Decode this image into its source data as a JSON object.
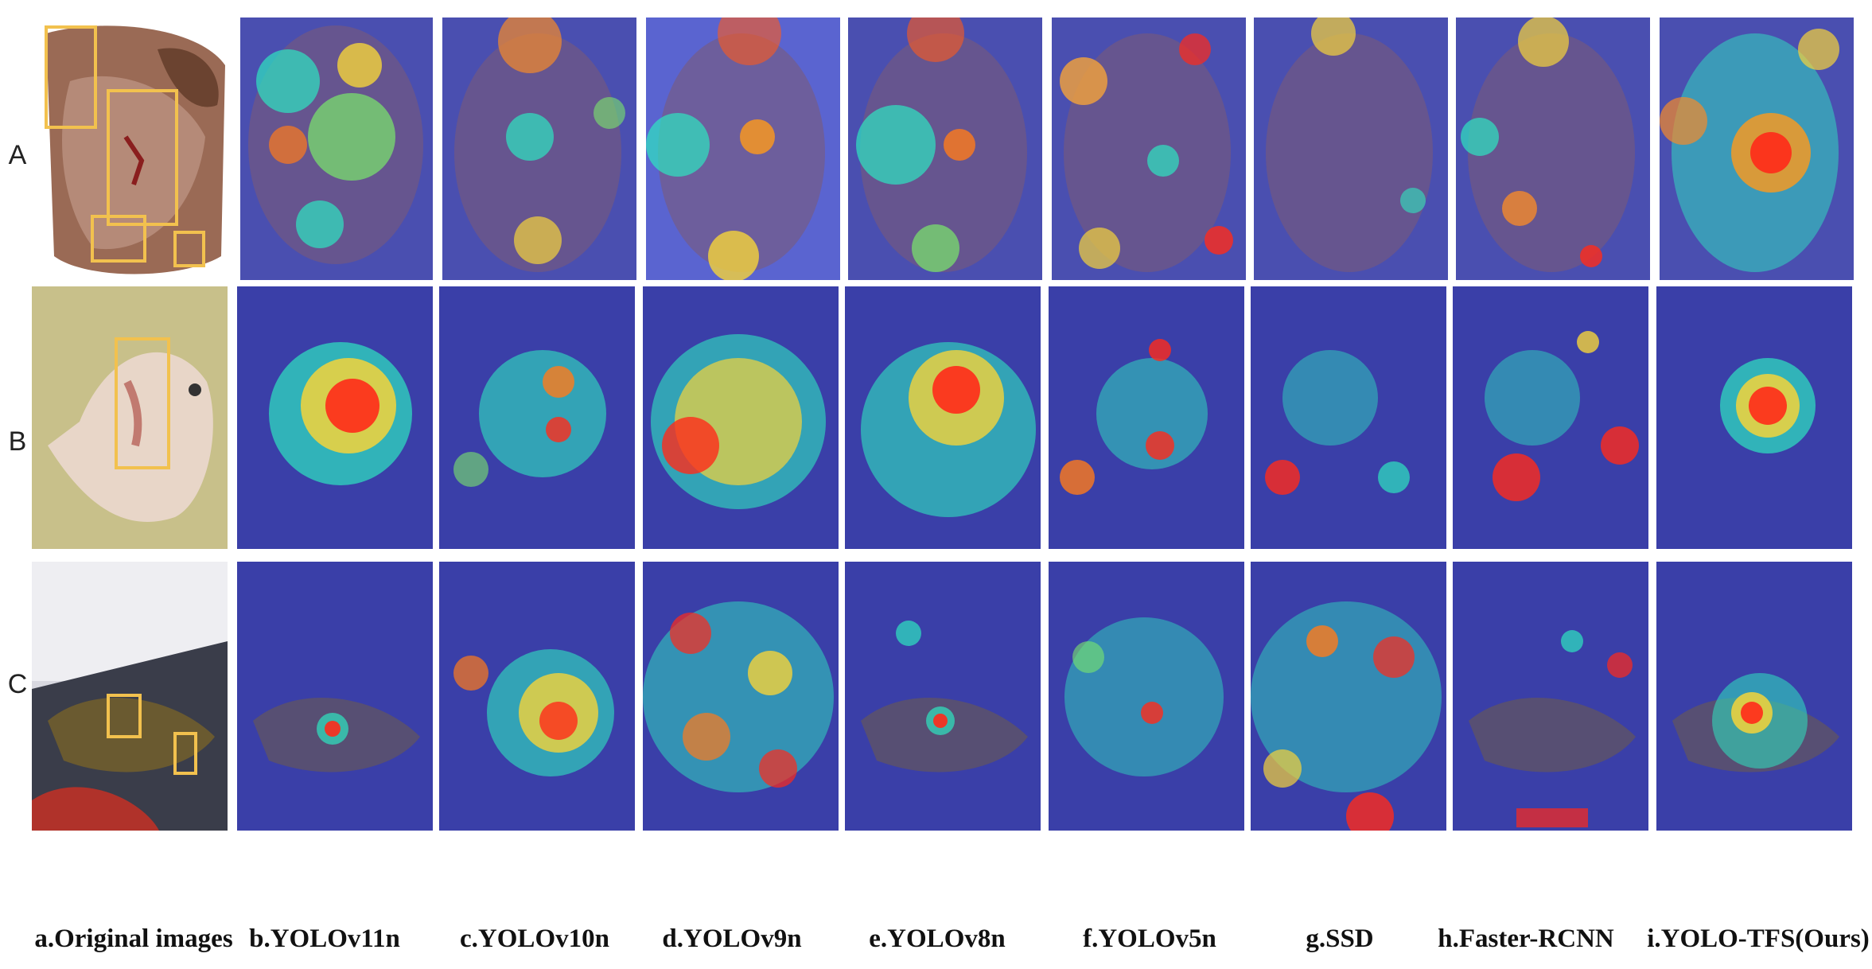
{
  "rows": [
    {
      "label": "A"
    },
    {
      "label": "B"
    },
    {
      "label": "C"
    }
  ],
  "columns": [
    {
      "caption": "a.Original images"
    },
    {
      "caption": "b.YOLOv11n"
    },
    {
      "caption": "c.YOLOv10n"
    },
    {
      "caption": "d.YOLOv9n"
    },
    {
      "caption": "e.YOLOv8n"
    },
    {
      "caption": "f.YOLOv5n"
    },
    {
      "caption": "g.SSD"
    },
    {
      "caption": "h.Faster-RCNN"
    },
    {
      "caption": "i.YOLO-TFS(Ours)"
    }
  ],
  "colors": {
    "box_outline": "#f2c14e",
    "heat_low": "#2b2f9e",
    "heat_mid": "#2ee6c0",
    "heat_high": "#ff2a1a",
    "fish_a": "#9a6a55",
    "fish_b_bg": "#c8c08a",
    "fish_c_bg": "#3a3d4a"
  }
}
